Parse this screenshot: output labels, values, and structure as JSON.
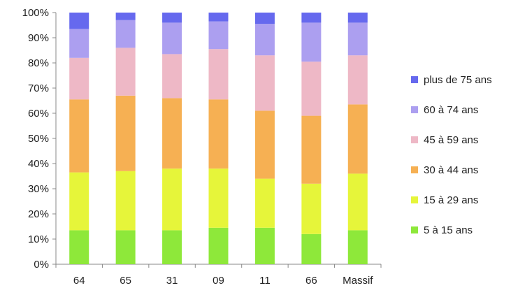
{
  "chart_data": {
    "type": "bar",
    "stacked": true,
    "categories": [
      "64",
      "65",
      "31",
      "09",
      "11",
      "66",
      "Massif"
    ],
    "series": [
      {
        "name": "5 à 15 ans",
        "color": "#8ee83a",
        "values": [
          13.5,
          13.5,
          13.5,
          14.5,
          14.5,
          12.0,
          13.5
        ]
      },
      {
        "name": "15 à  29 ans",
        "color": "#e6f53a",
        "values": [
          23.0,
          23.5,
          24.5,
          23.5,
          19.5,
          20.0,
          22.5
        ]
      },
      {
        "name": "30 à 44 ans",
        "color": "#f6b053",
        "values": [
          29.0,
          30.0,
          28.0,
          27.5,
          27.0,
          27.0,
          27.5
        ]
      },
      {
        "name": "45 à 59 ans",
        "color": "#eeb8c6",
        "values": [
          16.5,
          19.0,
          17.5,
          20.0,
          22.0,
          21.5,
          19.5
        ]
      },
      {
        "name": "60 à 74 ans",
        "color": "#ac9ff0",
        "values": [
          11.5,
          11.0,
          12.5,
          11.0,
          12.5,
          15.5,
          13.0
        ]
      },
      {
        "name": "plus de 75 ans",
        "color": "#6669ee",
        "values": [
          6.5,
          3.0,
          4.0,
          3.5,
          4.5,
          4.0,
          4.0
        ]
      }
    ],
    "ylim": [
      0,
      100
    ],
    "yticks": [
      "0%",
      "10%",
      "20%",
      "30%",
      "40%",
      "50%",
      "60%",
      "70%",
      "80%",
      "90%",
      "100%"
    ],
    "legend_order": [
      "plus de 75 ans",
      "60 à 74 ans",
      "45 à 59 ans",
      "30 à 44 ans",
      "15 à  29 ans",
      "5 à 15 ans"
    ],
    "legend_position": "right",
    "grid": false
  }
}
